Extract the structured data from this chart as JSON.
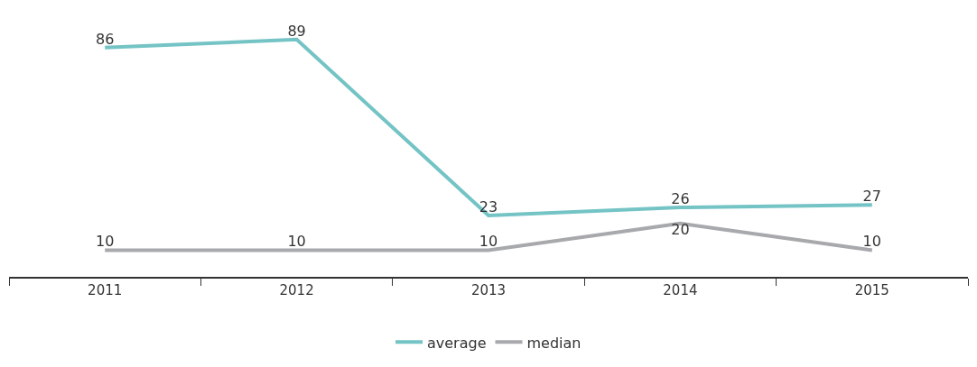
{
  "chart_data": {
    "type": "line",
    "categories": [
      "2011",
      "2012",
      "2013",
      "2014",
      "2015"
    ],
    "series": [
      {
        "name": "average",
        "color": "#74c3c5",
        "values": [
          86,
          89,
          23,
          26,
          27
        ]
      },
      {
        "name": "median",
        "color": "#a7a9ac",
        "values": [
          10,
          10,
          10,
          20,
          10
        ]
      }
    ],
    "data_labels": true,
    "legend": "bottom",
    "marker": "none",
    "line_style": "solid"
  }
}
